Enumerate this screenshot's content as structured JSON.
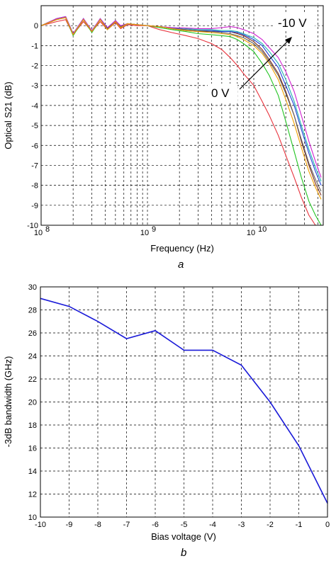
{
  "figure": {
    "caption_a": "a",
    "caption_b": "b"
  },
  "chart_data": [
    {
      "id": "a",
      "type": "line",
      "xscale": "log",
      "xlabel": "Frequency (Hz)",
      "ylabel": "Optical S21 (dB)",
      "xlim": [
        100000000,
        45000000000
      ],
      "ylim": [
        -10,
        1
      ],
      "x_tick_labels": [
        {
          "base": "10",
          "exp": "8"
        },
        {
          "base": "10",
          "exp": "9"
        },
        {
          "base": "10",
          "exp": "10"
        }
      ],
      "y_ticks": [
        0,
        -1,
        -2,
        -3,
        -4,
        -5,
        -6,
        -7,
        -8,
        -9,
        -10
      ],
      "y_tick_labels": [
        "0",
        "-1",
        "-2",
        "-3",
        "-4",
        "-5",
        "-6",
        "-7",
        "-8",
        "-9",
        "-10"
      ],
      "grid": true,
      "annotations": [
        {
          "text": "-10 V"
        },
        {
          "text": "0 V"
        }
      ],
      "freq_points": [
        100000000,
        140000000,
        170000000,
        200000000,
        250000000,
        300000000,
        360000000,
        420000000,
        500000000,
        560000000,
        650000000,
        800000000,
        1000000000,
        1300000000,
        1700000000,
        2300000000,
        3000000000,
        4000000000,
        5000000000,
        6000000000,
        7000000000,
        8000000000,
        10000000000,
        12000000000,
        14000000000,
        17000000000,
        20000000000,
        24000000000,
        28000000000,
        33000000000,
        38000000000,
        43000000000
      ],
      "series": [
        {
          "color": "#e8323c",
          "values": [
            0,
            0.2,
            0.3,
            -0.45,
            0.2,
            -0.3,
            0.2,
            -0.2,
            0.15,
            -0.15,
            0.05,
            0,
            0,
            -0.2,
            -0.35,
            -0.5,
            -0.65,
            -0.9,
            -1.2,
            -1.6,
            -2.0,
            -2.4,
            -3.0,
            -3.8,
            -4.5,
            -5.5,
            -6.5,
            -7.6,
            -8.6,
            -9.5,
            -10,
            -10
          ]
        },
        {
          "color": "#22c422",
          "values": [
            0,
            0.3,
            0.4,
            -0.5,
            0.3,
            -0.35,
            0.3,
            -0.2,
            0.2,
            -0.1,
            0.1,
            0.05,
            0,
            -0.1,
            -0.2,
            -0.3,
            -0.4,
            -0.45,
            -0.5,
            -0.55,
            -0.7,
            -0.9,
            -1.3,
            -1.9,
            -2.5,
            -3.5,
            -4.8,
            -6.3,
            -7.6,
            -8.8,
            -9.5,
            -10
          ]
        },
        {
          "color": "#7a2a1a",
          "values": [
            0,
            0.35,
            0.45,
            -0.45,
            0.35,
            -0.3,
            0.35,
            -0.15,
            0.25,
            -0.05,
            0.1,
            0.05,
            0,
            -0.05,
            -0.15,
            -0.25,
            -0.3,
            -0.3,
            -0.3,
            -0.3,
            -0.4,
            -0.5,
            -0.8,
            -1.2,
            -1.7,
            -2.4,
            -3.3,
            -4.5,
            -5.8,
            -7.0,
            -7.9,
            -8.5
          ]
        },
        {
          "color": "#2040d8",
          "values": [
            0,
            0.35,
            0.45,
            -0.4,
            0.35,
            -0.3,
            0.35,
            -0.15,
            0.25,
            -0.05,
            0.1,
            0.05,
            0,
            -0.05,
            -0.12,
            -0.2,
            -0.25,
            -0.25,
            -0.3,
            -0.3,
            -0.35,
            -0.45,
            -0.7,
            -1.0,
            -1.5,
            -2.1,
            -3.0,
            -4.0,
            -5.2,
            -6.4,
            -7.3,
            -8.0
          ]
        },
        {
          "color": "#20b0b0",
          "values": [
            0,
            0.35,
            0.45,
            -0.4,
            0.35,
            -0.25,
            0.35,
            -0.1,
            0.25,
            -0.05,
            0.1,
            0.05,
            0,
            -0.05,
            -0.1,
            -0.15,
            -0.2,
            -0.2,
            -0.25,
            -0.25,
            -0.3,
            -0.4,
            -0.6,
            -0.9,
            -1.3,
            -1.9,
            -2.7,
            -3.8,
            -5.0,
            -6.2,
            -7.1,
            -7.8
          ]
        },
        {
          "color": "#d020d0",
          "values": [
            0,
            0.35,
            0.45,
            -0.4,
            0.35,
            -0.25,
            0.35,
            -0.1,
            0.25,
            0,
            0.1,
            0.05,
            0,
            -0.05,
            -0.1,
            -0.12,
            -0.15,
            -0.15,
            -0.1,
            -0.05,
            -0.1,
            -0.2,
            -0.4,
            -0.7,
            -1.1,
            -1.6,
            -2.3,
            -3.3,
            -4.5,
            -5.8,
            -6.8,
            -7.6
          ]
        },
        {
          "color": "#606060",
          "values": [
            0,
            0.3,
            0.4,
            -0.45,
            0.3,
            -0.3,
            0.3,
            -0.15,
            0.2,
            -0.05,
            0.1,
            0.05,
            0,
            -0.05,
            -0.15,
            -0.2,
            -0.25,
            -0.3,
            -0.35,
            -0.4,
            -0.5,
            -0.6,
            -0.9,
            -1.3,
            -1.8,
            -2.5,
            -3.4,
            -4.5,
            -5.7,
            -6.9,
            -7.7,
            -8.3
          ]
        },
        {
          "color": "#f0a000",
          "values": [
            0,
            0.3,
            0.4,
            -0.45,
            0.3,
            -0.3,
            0.3,
            -0.2,
            0.2,
            -0.1,
            0.1,
            0.05,
            0,
            -0.05,
            -0.15,
            -0.25,
            -0.3,
            -0.35,
            -0.4,
            -0.45,
            -0.55,
            -0.7,
            -1.0,
            -1.4,
            -1.9,
            -2.7,
            -3.7,
            -4.9,
            -6.1,
            -7.3,
            -8.1,
            -8.7
          ]
        }
      ]
    },
    {
      "id": "b",
      "type": "line",
      "xlabel": "Bias voltage (V)",
      "ylabel": "-3dB bandwidth (GHz)",
      "xlim": [
        -10,
        0
      ],
      "ylim": [
        10,
        30
      ],
      "x_ticks": [
        -10,
        -9,
        -8,
        -7,
        -6,
        -5,
        -4,
        -3,
        -2,
        -1,
        0
      ],
      "x_tick_labels": [
        "-10",
        "-9",
        "-8",
        "-7",
        "-6",
        "-5",
        "-4",
        "-3",
        "-2",
        "-1",
        "0"
      ],
      "y_ticks": [
        10,
        12,
        14,
        16,
        18,
        20,
        22,
        24,
        26,
        28,
        30
      ],
      "y_tick_labels": [
        "10",
        "12",
        "14",
        "16",
        "18",
        "20",
        "22",
        "24",
        "26",
        "28",
        "30"
      ],
      "grid": true,
      "series": [
        {
          "color": "#1a1ad8",
          "x": [
            -10,
            -9,
            -8,
            -7,
            -6,
            -5,
            -4,
            -3,
            -2,
            -1,
            0
          ],
          "values": [
            29.0,
            28.3,
            27.0,
            25.5,
            26.2,
            24.5,
            24.5,
            23.2,
            20.0,
            16.2,
            11.2
          ]
        }
      ]
    }
  ]
}
